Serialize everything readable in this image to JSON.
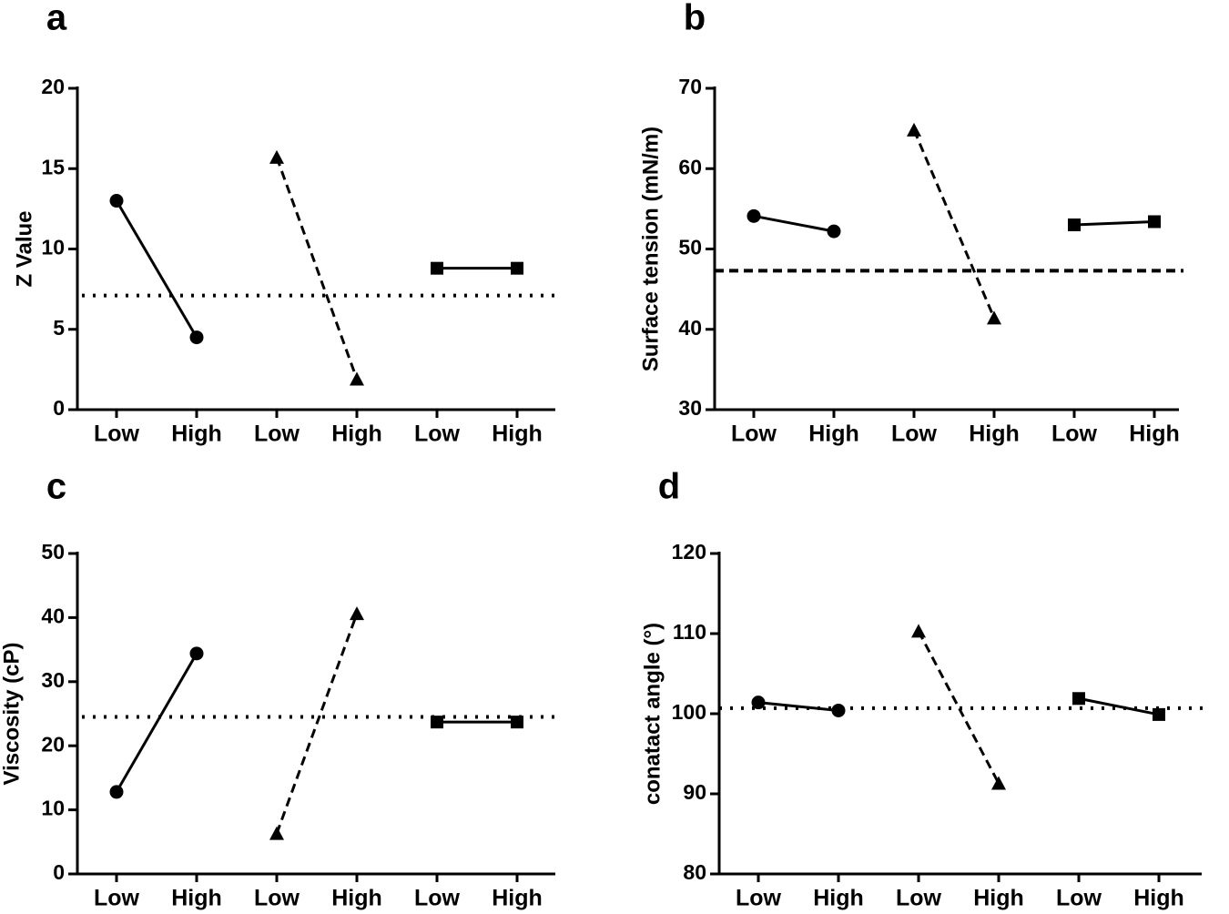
{
  "chart_data": [
    {
      "type": "line",
      "title": "a",
      "y_label": "Z Value",
      "categories": [
        "Low",
        "High",
        "Low",
        "High",
        "Low",
        "High"
      ],
      "ylim": [
        0,
        20
      ],
      "yticks": [
        0,
        5,
        10,
        15,
        20
      ],
      "series": [
        {
          "marker": "circle",
          "line_style": "solid",
          "color": "#000000",
          "values": [
            13.0,
            4.5,
            null,
            null,
            null,
            null
          ]
        },
        {
          "marker": "triangle",
          "line_style": "dashed",
          "color": "#000000",
          "values": [
            null,
            null,
            15.7,
            1.9,
            null,
            null
          ]
        },
        {
          "marker": "square",
          "line_style": "solid",
          "color": "#000000",
          "values": [
            null,
            null,
            null,
            null,
            8.8,
            8.8
          ]
        }
      ],
      "reference_line": {
        "value": 7.1,
        "style": "dotted"
      }
    },
    {
      "type": "line",
      "title": "b",
      "y_label": "Surface tension (mN/m)",
      "categories": [
        "Low",
        "High",
        "Low",
        "High",
        "Low",
        "High"
      ],
      "ylim": [
        30,
        70
      ],
      "yticks": [
        30,
        40,
        50,
        60,
        70
      ],
      "series": [
        {
          "marker": "circle",
          "line_style": "solid",
          "color": "#000000",
          "values": [
            54.1,
            52.2,
            null,
            null,
            null,
            null
          ]
        },
        {
          "marker": "triangle",
          "line_style": "dashed",
          "color": "#000000",
          "values": [
            null,
            null,
            64.8,
            41.4,
            null,
            null
          ]
        },
        {
          "marker": "square",
          "line_style": "solid",
          "color": "#000000",
          "values": [
            null,
            null,
            null,
            null,
            53.0,
            53.4
          ]
        }
      ],
      "reference_line": {
        "value": 47.3,
        "style": "dashed"
      }
    },
    {
      "type": "line",
      "title": "c",
      "y_label": "Viscosity (cP)",
      "categories": [
        "Low",
        "High",
        "Low",
        "High",
        "Low",
        "High"
      ],
      "ylim": [
        0,
        50
      ],
      "yticks": [
        0,
        10,
        20,
        30,
        40,
        50
      ],
      "series": [
        {
          "marker": "circle",
          "line_style": "solid",
          "color": "#000000",
          "values": [
            12.8,
            34.4,
            null,
            null,
            null,
            null
          ]
        },
        {
          "marker": "triangle",
          "line_style": "dashed",
          "color": "#000000",
          "values": [
            null,
            null,
            6.3,
            40.6,
            null,
            null
          ]
        },
        {
          "marker": "square",
          "line_style": "solid",
          "color": "#000000",
          "values": [
            null,
            null,
            null,
            null,
            23.7,
            23.7
          ]
        }
      ],
      "reference_line": {
        "value": 24.5,
        "style": "dotted"
      }
    },
    {
      "type": "line",
      "title": "d",
      "y_label": "conatact angle (°)",
      "categories": [
        "Low",
        "High",
        "Low",
        "High",
        "Low",
        "High"
      ],
      "ylim": [
        80,
        120
      ],
      "yticks": [
        80,
        90,
        100,
        110,
        120
      ],
      "series": [
        {
          "marker": "circle",
          "line_style": "solid",
          "color": "#000000",
          "values": [
            101.4,
            100.4,
            null,
            null,
            null,
            null
          ]
        },
        {
          "marker": "triangle",
          "line_style": "dashed",
          "color": "#000000",
          "values": [
            null,
            null,
            110.3,
            91.3,
            null,
            null
          ]
        },
        {
          "marker": "square",
          "line_style": "solid",
          "color": "#000000",
          "values": [
            null,
            null,
            null,
            null,
            101.9,
            99.9
          ]
        }
      ],
      "reference_line": {
        "value": 100.7,
        "style": "dotted"
      }
    }
  ]
}
